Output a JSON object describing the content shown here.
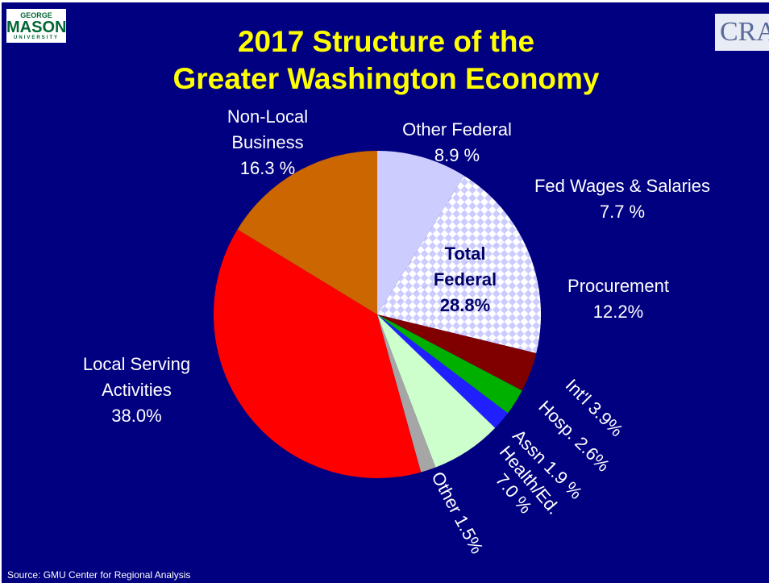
{
  "chart_data": {
    "type": "pie",
    "title": [
      "2017 Structure of the",
      "Greater Washington Economy"
    ],
    "categories": [
      "Other Federal",
      "Fed Wages & Salaries",
      "Procurement",
      "Int'l",
      "Hosp.",
      "Assn",
      "Health/Ed.",
      "Other",
      "Local Serving Activities",
      "Non-Local Business"
    ],
    "values": [
      8.9,
      7.7,
      12.2,
      3.9,
      2.6,
      1.9,
      7.0,
      1.5,
      38.0,
      16.3
    ],
    "value_labels": [
      "8.9 %",
      "7.7 %",
      "12.2%",
      "3.9%",
      "2.6%",
      "1.9 %",
      "7.0 %",
      "1.5%",
      "38.0%",
      "16.3 %"
    ],
    "colors": [
      "#ccccff",
      "#ccccff",
      "#ccccff",
      "#800000",
      "#00b000",
      "#2020ff",
      "#ccffcc",
      "#a6a6a6",
      "#ff0000",
      "#cc6600"
    ],
    "patterns": [
      null,
      "checker",
      "checker",
      null,
      null,
      null,
      null,
      null,
      null,
      null
    ],
    "annotation": "Total Federal 28.8%",
    "source": "Source: GMU Center for Regional Analysis",
    "logo_left": [
      "GEORGE",
      "MASON",
      "UNIVERSITY"
    ],
    "logo_right": "CRA"
  }
}
